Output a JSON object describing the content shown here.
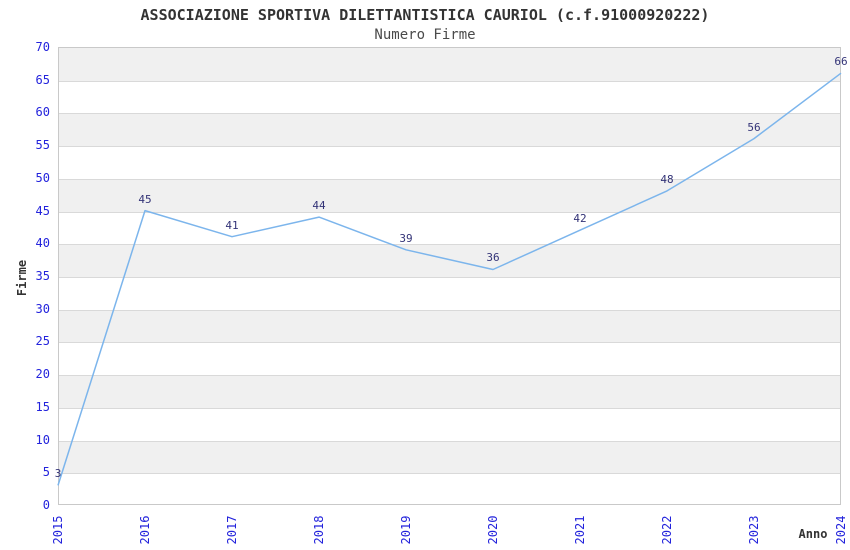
{
  "chart_data": {
    "type": "line",
    "title": "ASSOCIAZIONE SPORTIVA DILETTANTISTICA CAURIOL (c.f.91000920222)",
    "subtitle": "Numero Firme",
    "xlabel": "Anno",
    "ylabel": "Firme",
    "categories": [
      "2015",
      "2016",
      "2017",
      "2018",
      "2019",
      "2020",
      "2021",
      "2022",
      "2023",
      "2024"
    ],
    "values": [
      3,
      45,
      41,
      44,
      39,
      36,
      42,
      48,
      56,
      66
    ],
    "ylim": [
      0,
      70
    ],
    "ytick_step": 5,
    "yticks": [
      0,
      5,
      10,
      15,
      20,
      25,
      30,
      35,
      40,
      45,
      50,
      55,
      60,
      65,
      70
    ],
    "grid": true,
    "alternating_bands": true,
    "legend_position": "none",
    "colors": {
      "line": "#7cb5ec",
      "tick_label": "#2323dc",
      "data_label": "#333377",
      "band": "#f0f0f0",
      "gridline": "#d9d9d9",
      "plot_border": "#c9c9c9",
      "title": "#333333",
      "subtitle": "#4a4a4a",
      "axis_title": "#333333"
    }
  }
}
